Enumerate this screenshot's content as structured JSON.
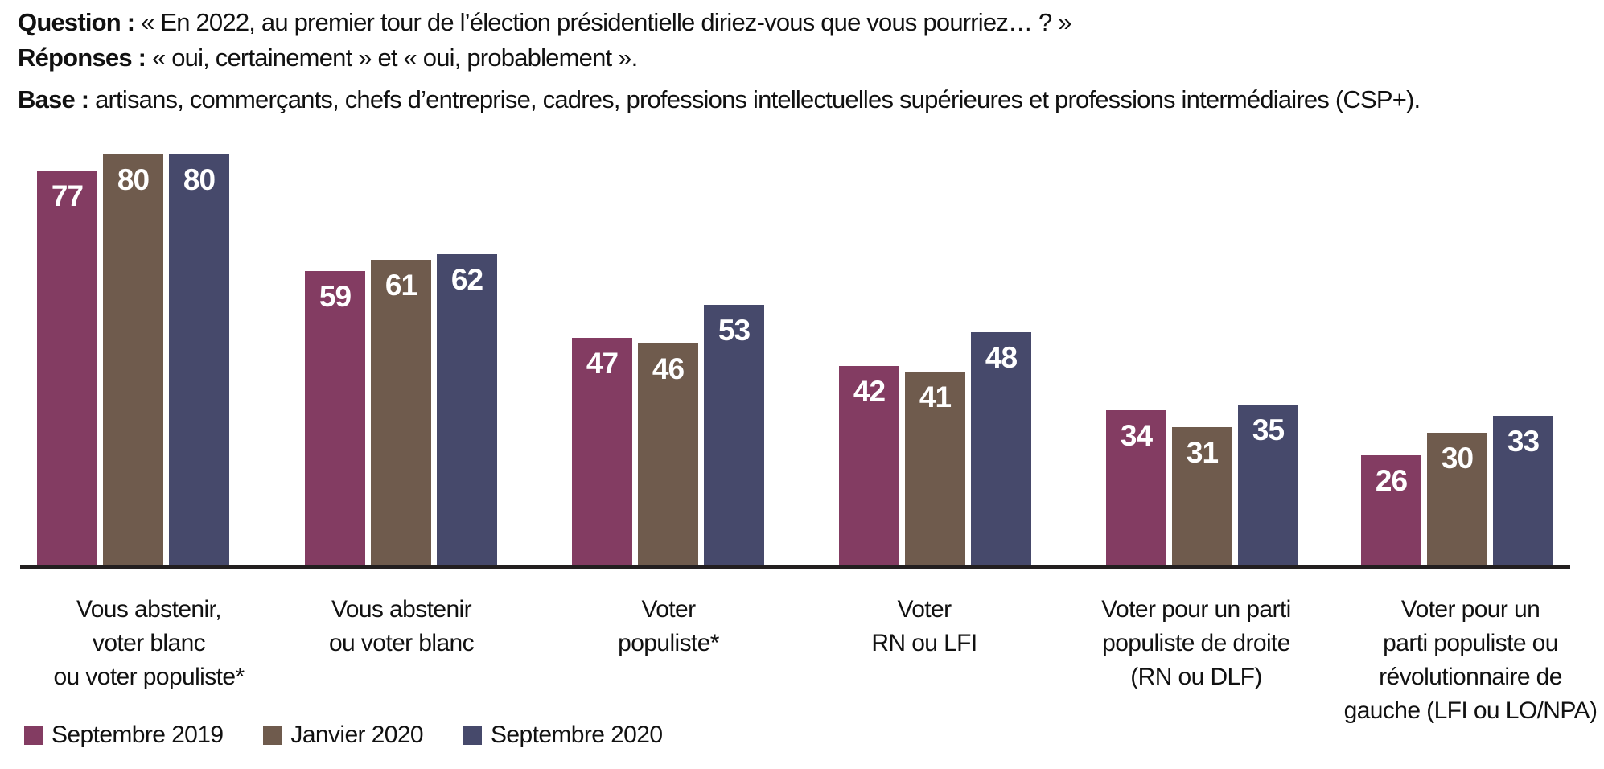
{
  "header": {
    "lines": [
      {
        "label": "Question :",
        "text": "« En 2022, au premier tour de l’élection présidentielle diriez-vous que vous pourriez… ? »"
      },
      {
        "label": "Réponses :",
        "text": "« oui, certainement » et « oui, probablement »."
      },
      {
        "label": "Base :",
        "text": "artisans, commerçants, chefs d’entreprise, cadres, professions intellectuelles supérieures et professions intermédiaires (CSP+)."
      }
    ]
  },
  "chart_data": {
    "type": "bar",
    "title": "",
    "categories": [
      "Vous abstenir,\nvoter blanc\nou voter populiste*",
      "Vous abstenir\nou voter blanc",
      "Voter\npopuliste*",
      "Voter\nRN ou LFI",
      "Voter pour un parti\npopuliste de droite\n(RN ou DLF)",
      "Voter pour un\nparti populiste ou\nrévolutionnaire de\ngauche (LFI ou LO/NPA)"
    ],
    "series": [
      {
        "name": "Septembre 2019",
        "color": "#833C62",
        "values": [
          77,
          59,
          47,
          42,
          34,
          26
        ]
      },
      {
        "name": "Janvier 2020",
        "color": "#6F5B4D",
        "values": [
          80,
          61,
          46,
          41,
          31,
          30
        ]
      },
      {
        "name": "Septembre 2020",
        "color": "#46496B",
        "values": [
          80,
          62,
          53,
          48,
          35,
          33
        ]
      }
    ],
    "unit": "%",
    "ylim": [
      0,
      100
    ],
    "grid": false,
    "y_axis_visible": false,
    "value_label_position": "inside-top",
    "value_label_color": "#FFFFFF",
    "axis_color": "#231F20",
    "legend_position": "bottom-left"
  }
}
